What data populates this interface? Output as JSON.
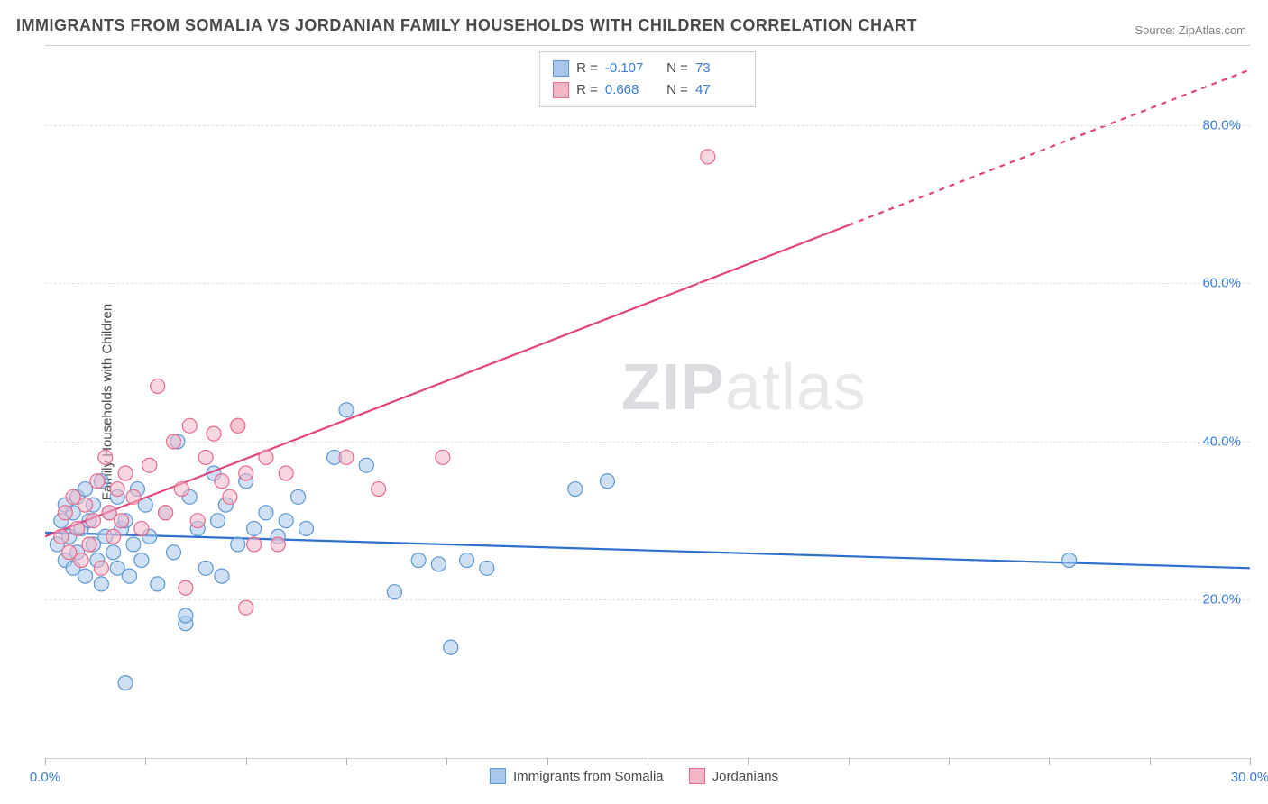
{
  "title": "IMMIGRANTS FROM SOMALIA VS JORDANIAN FAMILY HOUSEHOLDS WITH CHILDREN CORRELATION CHART",
  "source": "Source: ZipAtlas.com",
  "ylabel": "Family Households with Children",
  "watermark": {
    "left": "ZIP",
    "right": "atlas"
  },
  "chart": {
    "type": "scatter-with-regression",
    "background_color": "#ffffff",
    "grid_color": "#e0e0e0",
    "axis_color": "#d0d0d0",
    "tick_label_color": "#3b7dd8",
    "label_color": "#4a4a4a",
    "label_fontsize": 15,
    "tick_fontsize": 15,
    "title_fontsize": 18,
    "xlim": [
      0,
      30
    ],
    "ylim": [
      0,
      90
    ],
    "x_ticks": [
      0,
      2.5,
      5,
      7.5,
      10,
      12.5,
      15,
      17.5,
      20,
      22.5,
      25,
      27.5,
      30
    ],
    "x_tick_labels": {
      "0": "0.0%",
      "30": "30.0%"
    },
    "y_gridlines": [
      20,
      40,
      60,
      80
    ],
    "y_tick_labels": {
      "20": "20.0%",
      "40": "40.0%",
      "60": "60.0%",
      "80": "80.0%"
    },
    "marker_radius": 8,
    "marker_opacity": 0.55,
    "line_width": 2.2,
    "series": [
      {
        "name": "Immigrants from Somalia",
        "color_fill": "#a7c7ec",
        "color_stroke": "#5a97d6",
        "line_color": "#2e6fd0",
        "R": "-0.107",
        "N": "73",
        "regression": {
          "x1": 0,
          "y1": 28.5,
          "x2": 30,
          "y2": 24.0,
          "dash_after_x": null
        },
        "points": [
          [
            0.3,
            27
          ],
          [
            0.4,
            30
          ],
          [
            0.5,
            25
          ],
          [
            0.5,
            32
          ],
          [
            0.6,
            28
          ],
          [
            0.7,
            31
          ],
          [
            0.7,
            24
          ],
          [
            0.8,
            33
          ],
          [
            0.8,
            26
          ],
          [
            0.9,
            29
          ],
          [
            1.0,
            34
          ],
          [
            1.0,
            23
          ],
          [
            1.1,
            30
          ],
          [
            1.2,
            27
          ],
          [
            1.2,
            32
          ],
          [
            1.3,
            25
          ],
          [
            1.4,
            22
          ],
          [
            1.4,
            35
          ],
          [
            1.5,
            28
          ],
          [
            1.6,
            31
          ],
          [
            1.7,
            26
          ],
          [
            1.8,
            33
          ],
          [
            1.8,
            24
          ],
          [
            1.9,
            29
          ],
          [
            2.0,
            30
          ],
          [
            2.1,
            23
          ],
          [
            2.2,
            27
          ],
          [
            2.3,
            34
          ],
          [
            2.4,
            25
          ],
          [
            2.5,
            32
          ],
          [
            2.6,
            28
          ],
          [
            2.8,
            22
          ],
          [
            3.0,
            31
          ],
          [
            3.2,
            26
          ],
          [
            3.3,
            40
          ],
          [
            3.5,
            17
          ],
          [
            3.6,
            33
          ],
          [
            3.8,
            29
          ],
          [
            4.0,
            24
          ],
          [
            4.2,
            36
          ],
          [
            4.3,
            30
          ],
          [
            4.4,
            23
          ],
          [
            4.5,
            32
          ],
          [
            4.8,
            27
          ],
          [
            5.0,
            35
          ],
          [
            5.2,
            29
          ],
          [
            5.5,
            31
          ],
          [
            5.8,
            28
          ],
          [
            6.0,
            30
          ],
          [
            6.3,
            33
          ],
          [
            6.5,
            29
          ],
          [
            7.2,
            38
          ],
          [
            7.5,
            44
          ],
          [
            8.0,
            37
          ],
          [
            2.0,
            9.5
          ],
          [
            3.5,
            18
          ],
          [
            8.7,
            21
          ],
          [
            9.3,
            25
          ],
          [
            9.8,
            24.5
          ],
          [
            10.1,
            14
          ],
          [
            10.5,
            25
          ],
          [
            11.0,
            24
          ],
          [
            13.2,
            34
          ],
          [
            14.0,
            35
          ],
          [
            25.5,
            25
          ]
        ]
      },
      {
        "name": "Jordanians",
        "color_fill": "#f4b6c6",
        "color_stroke": "#e86a8c",
        "line_color": "#e3447a",
        "R": "0.668",
        "N": "47",
        "regression": {
          "x1": 0,
          "y1": 28.0,
          "x2": 30,
          "y2": 87.0,
          "dash_after_x": 20.0
        },
        "points": [
          [
            0.4,
            28
          ],
          [
            0.5,
            31
          ],
          [
            0.6,
            26
          ],
          [
            0.7,
            33
          ],
          [
            0.8,
            29
          ],
          [
            0.9,
            25
          ],
          [
            1.0,
            32
          ],
          [
            1.1,
            27
          ],
          [
            1.2,
            30
          ],
          [
            1.3,
            35
          ],
          [
            1.4,
            24
          ],
          [
            1.5,
            38
          ],
          [
            1.6,
            31
          ],
          [
            1.7,
            28
          ],
          [
            1.8,
            34
          ],
          [
            1.9,
            30
          ],
          [
            2.0,
            36
          ],
          [
            2.2,
            33
          ],
          [
            2.4,
            29
          ],
          [
            2.6,
            37
          ],
          [
            2.8,
            47
          ],
          [
            3.0,
            31
          ],
          [
            3.2,
            40
          ],
          [
            3.4,
            34
          ],
          [
            3.6,
            42
          ],
          [
            3.8,
            30
          ],
          [
            4.0,
            38
          ],
          [
            4.2,
            41
          ],
          [
            4.4,
            35
          ],
          [
            4.6,
            33
          ],
          [
            4.8,
            42
          ],
          [
            5.0,
            36
          ],
          [
            5.2,
            27
          ],
          [
            5.0,
            19
          ],
          [
            4.8,
            42
          ],
          [
            5.5,
            38
          ],
          [
            3.5,
            21.5
          ],
          [
            5.8,
            27
          ],
          [
            6.0,
            36
          ],
          [
            7.5,
            38
          ],
          [
            8.3,
            34
          ],
          [
            9.9,
            38
          ],
          [
            16.5,
            76
          ]
        ]
      }
    ]
  },
  "legend_bottom": [
    {
      "label": "Immigrants from Somalia",
      "fill": "#a7c7ec",
      "stroke": "#5a97d6"
    },
    {
      "label": "Jordanians",
      "fill": "#f4b6c6",
      "stroke": "#e86a8c"
    }
  ]
}
